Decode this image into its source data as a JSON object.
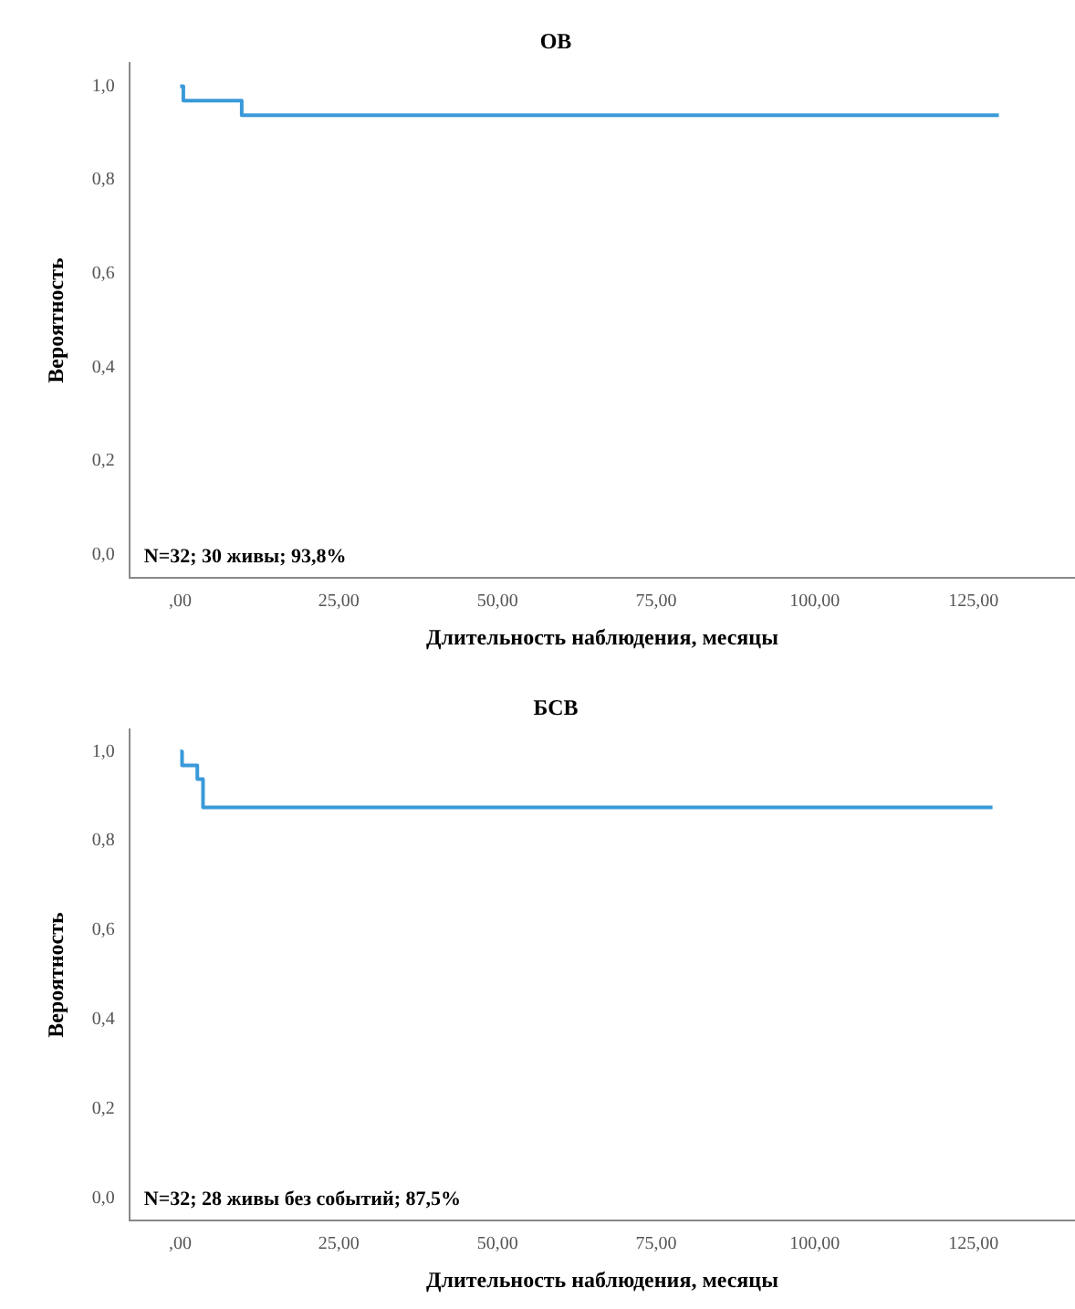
{
  "chart_data": [
    {
      "type": "step",
      "title": "ОВ",
      "xlabel": "Длительность наблюдения, месяцы",
      "ylabel": "Вероятность",
      "x": [
        0,
        0.5,
        9.7,
        129
      ],
      "series": [
        {
          "color": "#3a9ad9",
          "values": [
            1.0,
            0.969,
            0.938,
            0.938
          ]
        }
      ],
      "xlim": [
        -8,
        141
      ],
      "ylim": [
        -0.05,
        1.05
      ],
      "xticks": [
        {
          "value": 0,
          "label": ",00"
        },
        {
          "value": 25,
          "label": "25,00"
        },
        {
          "value": 50,
          "label": "50,00"
        },
        {
          "value": 75,
          "label": "75,00"
        },
        {
          "value": 100,
          "label": "100,00"
        },
        {
          "value": 125,
          "label": "125,00"
        }
      ],
      "yticks": [
        {
          "value": 0,
          "label": "0,0"
        },
        {
          "value": 0.2,
          "label": "0,2"
        },
        {
          "value": 0.4,
          "label": "0,4"
        },
        {
          "value": 0.6,
          "label": "0,6"
        },
        {
          "value": 0.8,
          "label": "0,8"
        },
        {
          "value": 1,
          "label": "1,0"
        }
      ],
      "annotations": [
        "N=32; 30 живы; 93,8%"
      ],
      "grid": false,
      "legend": false,
      "marker": "none"
    },
    {
      "type": "step",
      "title": "БСВ",
      "xlabel": "Длительность наблюдения, месяцы",
      "ylabel": "Вероятность",
      "x": [
        0,
        0.3,
        2.7,
        3.6,
        128
      ],
      "series": [
        {
          "color": "#3a9ad9",
          "values": [
            1.0,
            0.969,
            0.938,
            0.875,
            0.875
          ]
        }
      ],
      "xlim": [
        -8,
        141
      ],
      "ylim": [
        -0.05,
        1.05
      ],
      "xticks": [
        {
          "value": 0,
          "label": ",00"
        },
        {
          "value": 25,
          "label": "25,00"
        },
        {
          "value": 50,
          "label": "50,00"
        },
        {
          "value": 75,
          "label": "75,00"
        },
        {
          "value": 100,
          "label": "100,00"
        },
        {
          "value": 125,
          "label": "125,00"
        }
      ],
      "yticks": [
        {
          "value": 0,
          "label": "0,0"
        },
        {
          "value": 0.2,
          "label": "0,2"
        },
        {
          "value": 0.4,
          "label": "0,4"
        },
        {
          "value": 0.6,
          "label": "0,6"
        },
        {
          "value": 0.8,
          "label": "0,8"
        },
        {
          "value": 1,
          "label": "1,0"
        }
      ],
      "annotations": [
        "N=32; 28 живы без событий; 87,5%"
      ],
      "grid": false,
      "legend": false,
      "marker": "none"
    }
  ]
}
